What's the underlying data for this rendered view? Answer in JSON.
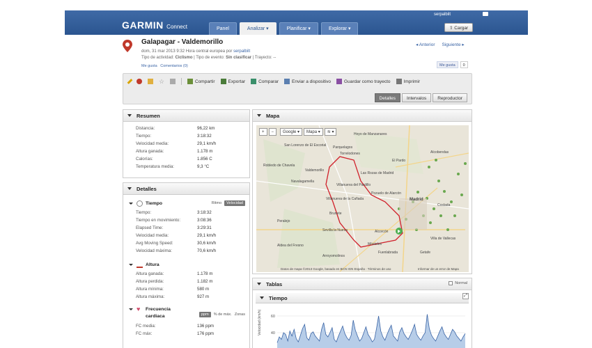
{
  "header": {
    "brand": "GARMIN",
    "brand_sub": "Connect",
    "user": "serpalbilt",
    "upload_label": "Cargar",
    "nav": [
      "Panel",
      "Analizar",
      "Planificar",
      "Explorar"
    ],
    "colors": {
      "bar": "#2b5590",
      "link": "#3a64a5"
    }
  },
  "activity": {
    "title": "Galapagar - Valdemorillo",
    "date_line": "dom, 31 mar 2013 9:32 Hora central europea por ",
    "author": "serpalbilt",
    "type_line_pre": "Tipo de actividad: ",
    "type": "Ciclismo",
    "type_line_mid": " | Tipo de evento: ",
    "event": "Sin clasificar",
    "type_line_post": " | Trayecto: --",
    "like": "Me gusta",
    "comments": "Comentarios (0)",
    "prev": "Anterior",
    "next": "Siguiente",
    "fb_like": "Me gusta",
    "fb_count": "0"
  },
  "toolbar": {
    "actions": [
      "Compartir",
      "Exportar",
      "Comparar",
      "Enviar a dispositivo",
      "Guardar como trayecto",
      "Imprimir"
    ],
    "views": [
      "Detalles",
      "Intervalos",
      "Reproductor"
    ],
    "active_view": "Detalles"
  },
  "resumen": {
    "title": "Resumen",
    "rows": [
      {
        "k": "Distancia:",
        "v": "96,22 km"
      },
      {
        "k": "Tiempo:",
        "v": "3:18:32"
      },
      {
        "k": "Velocidad media:",
        "v": "29,1 km/h"
      },
      {
        "k": "Altura ganada:",
        "v": "1.178 m"
      },
      {
        "k": "Calorías:",
        "v": "1.856 C"
      },
      {
        "k": "Temperatura media:",
        "v": "9,3 °C"
      }
    ]
  },
  "detalles": {
    "title": "Detalles",
    "tiempo": {
      "title": "Tiempo",
      "ritmo": "Ritmo",
      "velocidad": "Velocidad",
      "rows": [
        {
          "k": "Tiempo:",
          "v": "3:18:32"
        },
        {
          "k": "Tiempo en movimiento:",
          "v": "3:08:36"
        },
        {
          "k": "Elapsed Time:",
          "v": "3:29:31"
        },
        {
          "k": "Velocidad media:",
          "v": "29,1 km/h"
        },
        {
          "k": "Avg Moving Speed:",
          "v": "30,6 km/h"
        },
        {
          "k": "Velocidad máxima:",
          "v": "70,6 km/h"
        }
      ]
    },
    "altura": {
      "title": "Altura",
      "rows": [
        {
          "k": "Altura ganada:",
          "v": "1.178 m"
        },
        {
          "k": "Altura perdida:",
          "v": "1.182 m"
        },
        {
          "k": "Altura mínima:",
          "v": "580 m"
        },
        {
          "k": "Altura máxima:",
          "v": "927 m"
        }
      ]
    },
    "fc": {
      "title": "Frecuencia",
      "title2": "cardiaca",
      "ppm": "ppm",
      "pct": "% de máx.",
      "zonas": "Zonas",
      "rows": [
        {
          "k": "FC media:",
          "v": "136 ppm"
        },
        {
          "k": "FC máx:",
          "v": "176 ppm"
        }
      ]
    }
  },
  "mapa": {
    "title": "Mapa",
    "zoom_in": "+",
    "zoom_out": "−",
    "provider": "Google",
    "type": "Mapa",
    "footer": "Datos de mapa ©2013 Google, basado en BCN IGN España · Términos de uso",
    "report": "Informar de un error de Mapa",
    "places": [
      "Hoyo de Manzanares",
      "San Lorenzo de El Escorial",
      "Parquelagos",
      "Torrelodones",
      "El Pardo",
      "Alcobendas",
      "Robledo de Chavela",
      "Valdemorillo",
      "Las Rozas de Madrid",
      "Navalagamella",
      "Villanueva del Pardillo",
      "Pozuelo de Alarcón",
      "Madrid",
      "Coslada",
      "Villanueva de la Cañada",
      "Brunete",
      "Peralejo",
      "Sevilla la Nueva",
      "Alcorcón",
      "Villa de Vallecas",
      "Aldea del Fresno",
      "Móstoles",
      "Fuenlabrada",
      "Arroyomolinos",
      "Getafe"
    ]
  },
  "tablas": {
    "title": "Tablas",
    "normal": "Normal",
    "chart_title": "Tiempo",
    "y_label": "Velocidad (km/h)"
  },
  "chart_data": {
    "type": "area",
    "title": "Tiempo",
    "ylabel": "Velocidad (km/h)",
    "yticks": [
      60,
      40
    ],
    "ylim": [
      20,
      70
    ],
    "values": [
      28,
      35,
      32,
      40,
      38,
      30,
      42,
      36,
      44,
      33,
      29,
      37,
      45,
      50,
      34,
      31,
      39,
      41,
      36,
      33,
      30,
      44,
      52,
      38,
      35,
      40,
      46,
      32,
      29,
      36,
      42,
      48,
      39,
      34,
      31,
      37,
      55,
      43,
      36,
      30,
      33,
      40,
      47,
      38,
      34,
      29,
      32,
      45,
      60,
      42,
      35,
      31,
      38,
      44,
      49,
      36,
      33,
      30,
      41,
      46,
      39,
      35,
      32,
      37,
      43,
      50,
      38,
      34,
      31,
      36,
      40,
      62,
      45,
      37,
      33,
      30,
      36,
      42,
      47,
      39,
      35,
      32,
      38,
      44,
      41,
      36,
      33,
      30,
      35,
      39
    ]
  }
}
